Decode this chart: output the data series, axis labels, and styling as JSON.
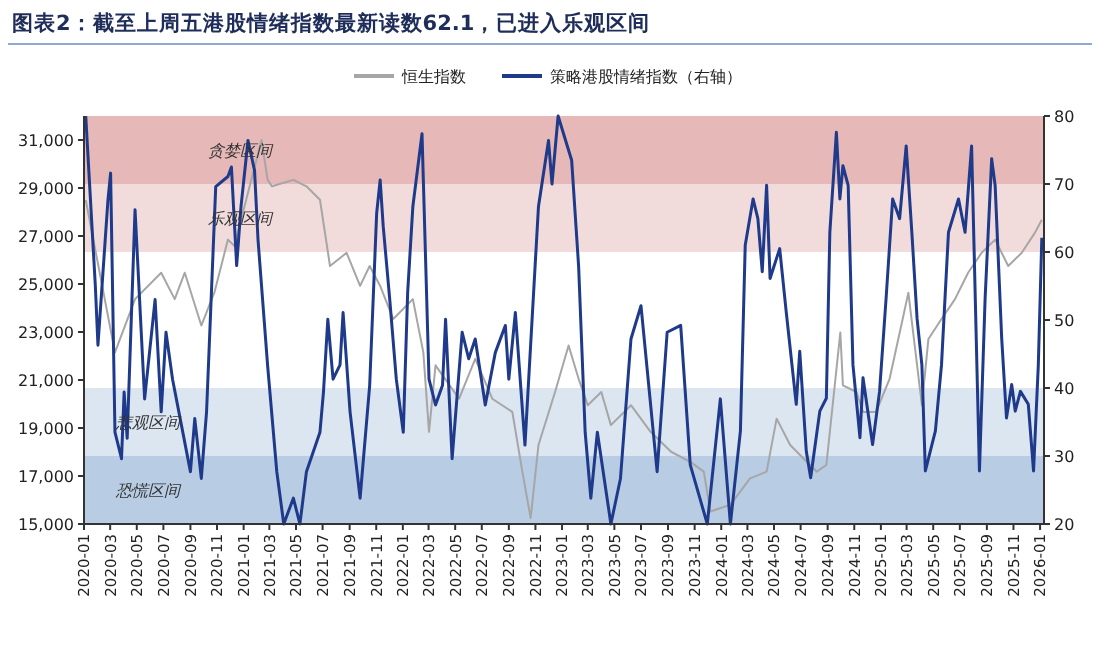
{
  "chart_data": {
    "type": "line",
    "title": "图表2：截至上周五港股情绪指数最新读数62.1，已进入乐观区间",
    "legend": "top",
    "grid": false,
    "marker": "none",
    "line_style": "solid",
    "xlim": [
      "2020-01-01",
      "2026-01-10"
    ],
    "xticks": [
      "2020-01",
      "2020-03",
      "2020-05",
      "2020-07",
      "2020-09",
      "2020-11",
      "2021-01",
      "2021-03",
      "2021-05",
      "2021-07",
      "2021-09",
      "2021-11",
      "2022-01",
      "2022-03",
      "2022-05",
      "2022-07",
      "2022-09",
      "2022-11",
      "2023-01",
      "2023-03",
      "2023-05",
      "2023-07",
      "2023-09",
      "2023-11",
      "2024-01",
      "2024-03",
      "2024-05",
      "2024-07",
      "2024-09",
      "2024-11",
      "2025-01",
      "2025-03",
      "2025-05",
      "2025-07",
      "2025-09",
      "2025-11",
      "2026-01"
    ],
    "ylim": [
      15000,
      32000
    ],
    "yticks": [
      {
        "value": 15000,
        "label": "15,000"
      },
      {
        "value": 17000,
        "label": "17,000"
      },
      {
        "value": 19000,
        "label": "19,000"
      },
      {
        "value": 21000,
        "label": "21,000"
      },
      {
        "value": 23000,
        "label": "23,000"
      },
      {
        "value": 25000,
        "label": "25,000"
      },
      {
        "value": 27000,
        "label": "27,000"
      },
      {
        "value": 29000,
        "label": "29,000"
      },
      {
        "value": 31000,
        "label": "31,000"
      }
    ],
    "y2lim": [
      20,
      80
    ],
    "y2ticks": [
      20,
      30,
      40,
      50,
      60,
      70,
      80
    ],
    "bands": [
      {
        "axis": "y2",
        "from": 70,
        "to": 80,
        "label": "贪婪区间",
        "color": "#e6b8b7"
      },
      {
        "axis": "y2",
        "from": 60,
        "to": 70,
        "label": "乐观区间",
        "color": "#f2dcdb"
      },
      {
        "axis": "y2",
        "from": 30,
        "to": 40,
        "label": "悲观区间",
        "color": "#dce6f1"
      },
      {
        "axis": "y2",
        "from": 20,
        "to": 30,
        "label": "恐慌区间",
        "color": "#b8cce4"
      }
    ],
    "series": [
      {
        "name": "恒生指数",
        "color": "#a6a6a6",
        "x": [
          "2020-01-05",
          "2020-03-12",
          "2020-04-27",
          "2020-06-26",
          "2020-07-27",
          "2020-08-19",
          "2020-09-26",
          "2020-10-26",
          "2020-11-26",
          "2020-12-11",
          "2021-01-03",
          "2021-02-11",
          "2021-02-25",
          "2021-03-07",
          "2021-04-25",
          "2021-05-25",
          "2021-06-25",
          "2021-07-18",
          "2021-08-25",
          "2021-09-25",
          "2021-10-17",
          "2021-11-10",
          "2021-12-10",
          "2022-01-24",
          "2022-02-17",
          "2022-03-02",
          "2022-03-17",
          "2022-05-10",
          "2022-06-16",
          "2022-07-25",
          "2022-09-09",
          "2022-10-02",
          "2022-10-21",
          "2022-11-08",
          "2022-12-16",
          "2023-01-16",
          "2023-02-08",
          "2023-03-01",
          "2023-04-01",
          "2023-04-23",
          "2023-06-08",
          "2023-07-23",
          "2023-09-08",
          "2023-10-22",
          "2023-11-22",
          "2023-12-07",
          "2024-01-22",
          "2024-03-07",
          "2024-04-14",
          "2024-05-07",
          "2024-06-07",
          "2024-07-07",
          "2024-08-07",
          "2024-08-29",
          "2024-09-30",
          "2024-10-06",
          "2024-11-06",
          "2024-11-21",
          "2024-12-21",
          "2025-01-21",
          "2025-02-20",
          "2025-03-05",
          "2025-04-05",
          "2025-04-20",
          "2025-05-20",
          "2025-06-20",
          "2025-07-20",
          "2025-08-20",
          "2025-09-20",
          "2025-10-20",
          "2025-11-20",
          "2025-12-20",
          "2026-01-05"
        ],
        "values": [
          28500,
          22150,
          24370,
          25470,
          24370,
          25470,
          23270,
          24650,
          26850,
          26580,
          28240,
          31000,
          29340,
          29070,
          29340,
          29070,
          28510,
          25750,
          26300,
          24920,
          25750,
          24920,
          23540,
          24370,
          22150,
          18840,
          21610,
          20220,
          21880,
          20220,
          19670,
          17180,
          15250,
          18290,
          20500,
          22440,
          21050,
          19950,
          20500,
          19120,
          19950,
          18840,
          18010,
          17590,
          17180,
          15520,
          15800,
          16900,
          17180,
          19390,
          18290,
          17740,
          17180,
          17460,
          22980,
          20780,
          20500,
          19670,
          19670,
          21050,
          23540,
          24640,
          19950,
          22710,
          23540,
          24370,
          25470,
          26300,
          26850,
          25750,
          26300,
          27130,
          27680
        ]
      },
      {
        "name": "策略港股情绪指数（右轴）",
        "color": "#1f3a8a",
        "axis": "y2",
        "x": [
          "2020-01-05",
          "2020-01-27",
          "2020-02-02",
          "2020-02-25",
          "2020-03-02",
          "2020-03-12",
          "2020-03-27",
          "2020-04-02",
          "2020-04-09",
          "2020-04-27",
          "2020-05-19",
          "2020-06-12",
          "2020-06-26",
          "2020-07-07",
          "2020-07-22",
          "2020-09-01",
          "2020-09-11",
          "2020-09-26",
          "2020-10-08",
          "2020-10-29",
          "2020-11-26",
          "2020-12-04",
          "2020-12-16",
          "2020-12-26",
          "2021-01-11",
          "2021-01-26",
          "2021-02-03",
          "2021-02-25",
          "2021-03-18",
          "2021-04-03",
          "2021-04-25",
          "2021-05-10",
          "2021-05-25",
          "2021-06-25",
          "2021-07-03",
          "2021-07-13",
          "2021-07-25",
          "2021-08-10",
          "2021-08-17",
          "2021-09-02",
          "2021-09-25",
          "2021-10-17",
          "2021-11-02",
          "2021-11-10",
          "2021-11-17",
          "2021-12-02",
          "2021-12-17",
          "2022-01-02",
          "2022-01-12",
          "2022-01-24",
          "2022-02-14",
          "2022-03-02",
          "2022-03-17",
          "2022-04-02",
          "2022-04-09",
          "2022-04-24",
          "2022-05-17",
          "2022-06-01",
          "2022-06-16",
          "2022-07-09",
          "2022-08-01",
          "2022-08-24",
          "2022-09-01",
          "2022-09-16",
          "2022-10-08",
          "2022-11-08",
          "2022-12-01",
          "2022-12-09",
          "2022-12-23",
          "2023-01-23",
          "2023-02-08",
          "2023-02-23",
          "2023-03-08",
          "2023-03-23",
          "2023-04-23",
          "2023-05-15",
          "2023-06-08",
          "2023-07-01",
          "2023-08-07",
          "2023-08-30",
          "2023-09-30",
          "2023-10-22",
          "2023-11-30",
          "2023-12-30",
          "2024-01-22",
          "2024-02-14",
          "2024-02-25",
          "2024-03-14",
          "2024-03-25",
          "2024-04-04",
          "2024-04-14",
          "2024-04-22",
          "2024-05-14",
          "2024-05-29",
          "2024-06-21",
          "2024-06-29",
          "2024-07-14",
          "2024-07-24",
          "2024-08-14",
          "2024-08-29",
          "2024-09-06",
          "2024-09-21",
          "2024-09-29",
          "2024-10-06",
          "2024-10-18",
          "2024-10-29",
          "2024-11-14",
          "2024-11-21",
          "2024-12-13",
          "2024-12-29",
          "2025-01-13",
          "2025-01-28",
          "2025-02-13",
          "2025-02-28",
          "2025-03-13",
          "2025-03-25",
          "2025-04-05",
          "2025-04-13",
          "2025-05-06",
          "2025-05-20",
          "2025-06-05",
          "2025-06-28",
          "2025-07-13",
          "2025-07-28",
          "2025-08-15",
          "2025-08-28",
          "2025-09-12",
          "2025-09-20",
          "2025-10-05",
          "2025-10-16",
          "2025-10-28",
          "2025-11-05",
          "2025-11-17",
          "2025-12-05",
          "2025-12-17",
          "2025-12-28",
          "2026-01-05"
        ],
        "values": [
          80,
          55,
          46.3,
          67.7,
          71.6,
          33.5,
          29.6,
          39.4,
          32.6,
          66.2,
          38.4,
          53,
          36.5,
          48.2,
          41.3,
          27.7,
          35.5,
          26.7,
          36.5,
          69.6,
          71.1,
          72.5,
          58,
          66.7,
          76.4,
          72,
          61.8,
          43.3,
          27.7,
          20,
          23.8,
          20,
          27.7,
          33.5,
          39.4,
          50.1,
          41.3,
          43.4,
          51.1,
          36.5,
          23.8,
          40.4,
          65.7,
          70.6,
          63.8,
          53,
          41.3,
          33.5,
          54,
          66.7,
          77.4,
          41.3,
          37.5,
          40.4,
          50.1,
          29.6,
          48.2,
          44.3,
          47.2,
          37.5,
          45.2,
          49.2,
          41.3,
          51.1,
          31.6,
          66.7,
          76.4,
          70,
          80,
          73.5,
          57.9,
          33.5,
          23.8,
          33.5,
          20,
          26.7,
          47.2,
          52.1,
          27.7,
          48.2,
          49.2,
          28.7,
          20,
          38.4,
          20,
          33.7,
          61,
          67.8,
          64.9,
          57.1,
          69.8,
          56.1,
          60.5,
          51.2,
          37.6,
          45.4,
          30.7,
          26.8,
          36.6,
          38.5,
          62.9,
          77.6,
          67.8,
          72.7,
          69.8,
          43.4,
          32.7,
          41.5,
          31.7,
          39.5,
          53.2,
          67.8,
          64.9,
          75.6,
          62.9,
          50.2,
          43.4,
          27.8,
          33.7,
          43.4,
          62.9,
          67.8,
          62.9,
          75.6,
          27.8,
          53.2,
          73.7,
          69.8,
          47.3,
          35.6,
          40.5,
          36.6,
          39.5,
          37.6,
          27.8,
          43.4,
          62.1
        ]
      }
    ]
  }
}
